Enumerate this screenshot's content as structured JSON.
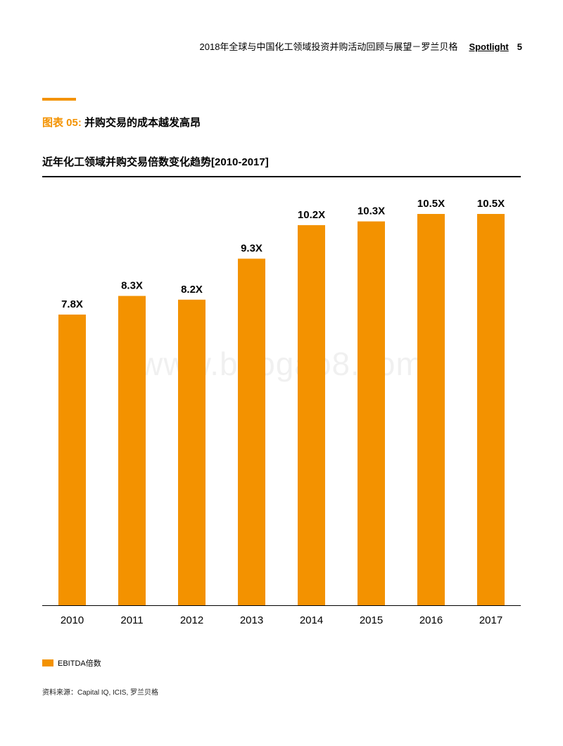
{
  "header": {
    "title": "2018年全球与中国化工领域投资并购活动回顾与展望－罗兰贝格",
    "series_label": "Spotlight",
    "page_number": "5"
  },
  "figure": {
    "number": "图表 05:",
    "caption": "并购交易的成本越发高昂",
    "chart_title": "近年化工领域并购交易倍数变化趋势[2010-2017]"
  },
  "legend": {
    "label": "EBITDA倍数"
  },
  "source": "资料来源：Capital IQ, ICIS, 罗兰贝格",
  "watermark": "www.baogao8.com",
  "colors": {
    "accent": "#f39200",
    "bar": "#f39200",
    "text": "#000000"
  },
  "chart_data": {
    "type": "bar",
    "categories": [
      "2010",
      "2011",
      "2012",
      "2013",
      "2014",
      "2015",
      "2016",
      "2017"
    ],
    "series": [
      {
        "name": "EBITDA倍数",
        "values": [
          7.8,
          8.3,
          8.2,
          9.3,
          10.2,
          10.3,
          10.5,
          10.5
        ]
      }
    ],
    "data_labels": [
      "7.8X",
      "8.3X",
      "8.2X",
      "9.3X",
      "10.2X",
      "10.3X",
      "10.5X",
      "10.5X"
    ],
    "ylim": [
      0,
      10.5
    ],
    "grid": false,
    "legend_position": "bottom-left"
  }
}
